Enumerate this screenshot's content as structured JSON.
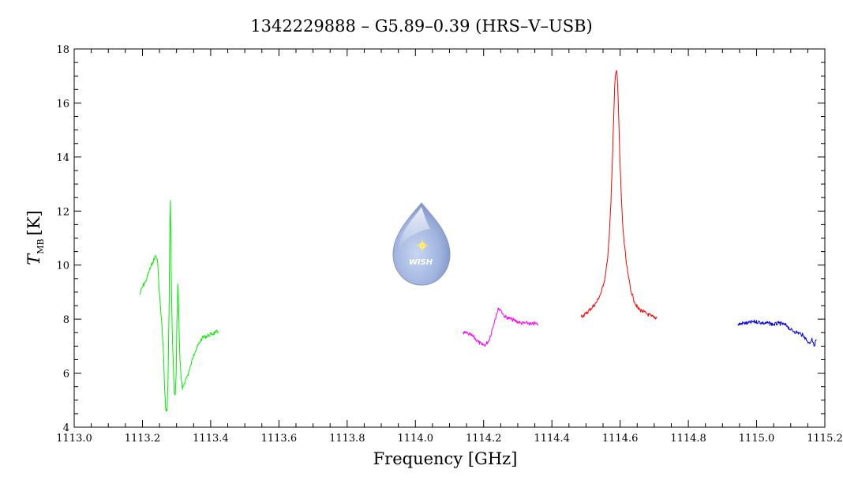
{
  "chart_data": {
    "type": "line",
    "title": "1342229888 – G5.89–0.39 (HRS–V–USB)",
    "xlabel": "Frequency [GHz]",
    "ylabel": "T",
    "ylabel_sub": "MB",
    "ylabel_unit": "[K]",
    "xlim": [
      1113.0,
      1115.2
    ],
    "ylim": [
      4,
      18
    ],
    "x_ticks": [
      "1113.0",
      "1113.2",
      "1113.4",
      "1113.6",
      "1113.8",
      "1114.0",
      "1114.2",
      "1114.4",
      "1114.6",
      "1114.8",
      "1115.0",
      "1115.2"
    ],
    "y_ticks": [
      "4",
      "6",
      "8",
      "10",
      "12",
      "14",
      "16",
      "18"
    ],
    "grid": false,
    "legend": "none",
    "logo_text": "WISH",
    "series": [
      {
        "color": "#00ee00",
        "x": [
          1113.192,
          1113.2,
          1113.21,
          1113.22,
          1113.23,
          1113.238,
          1113.244,
          1113.248,
          1113.253,
          1113.258,
          1113.262,
          1113.265,
          1113.268,
          1113.272,
          1113.275,
          1113.278,
          1113.28,
          1113.282,
          1113.284,
          1113.287,
          1113.29,
          1113.293,
          1113.296,
          1113.299,
          1113.301,
          1113.304,
          1113.306,
          1113.308,
          1113.31,
          1113.313,
          1113.317,
          1113.322,
          1113.328,
          1113.335,
          1113.342,
          1113.35,
          1113.358,
          1113.366,
          1113.375,
          1113.384,
          1113.394,
          1113.404,
          1113.414,
          1113.422
        ],
        "y": [
          8.9,
          9.2,
          9.4,
          9.8,
          10.1,
          10.35,
          10.2,
          9.3,
          8.4,
          7.6,
          6.6,
          5.4,
          4.7,
          4.6,
          5.8,
          8.3,
          11.0,
          12.4,
          10.0,
          7.7,
          6.5,
          5.3,
          5.2,
          6.0,
          7.9,
          9.3,
          8.5,
          7.4,
          6.5,
          5.9,
          5.4,
          5.6,
          5.8,
          6.0,
          6.3,
          6.7,
          6.9,
          7.1,
          7.3,
          7.35,
          7.4,
          7.45,
          7.5,
          7.55
        ]
      },
      {
        "color": "#ff00ff",
        "x": [
          1114.14,
          1114.155,
          1114.17,
          1114.185,
          1114.195,
          1114.205,
          1114.215,
          1114.225,
          1114.232,
          1114.238,
          1114.244,
          1114.25,
          1114.256,
          1114.262,
          1114.27,
          1114.28,
          1114.29,
          1114.3,
          1114.31,
          1114.32,
          1114.33,
          1114.34,
          1114.35,
          1114.36
        ],
        "y": [
          7.5,
          7.45,
          7.35,
          7.15,
          7.05,
          7.05,
          7.2,
          7.6,
          7.95,
          8.2,
          8.4,
          8.35,
          8.2,
          8.1,
          8.05,
          8.0,
          7.95,
          7.9,
          7.85,
          7.85,
          7.85,
          7.8,
          7.85,
          7.8
        ]
      },
      {
        "color": "#ff0000",
        "x": [
          1114.485,
          1114.5,
          1114.515,
          1114.53,
          1114.545,
          1114.555,
          1114.562,
          1114.568,
          1114.573,
          1114.577,
          1114.581,
          1114.584,
          1114.587,
          1114.59,
          1114.593,
          1114.596,
          1114.599,
          1114.603,
          1114.607,
          1114.612,
          1114.618,
          1114.625,
          1114.633,
          1114.642,
          1114.652,
          1114.664,
          1114.678,
          1114.692,
          1114.708
        ],
        "y": [
          8.1,
          8.2,
          8.4,
          8.6,
          9.0,
          9.5,
          10.1,
          11.0,
          12.3,
          13.8,
          15.4,
          16.6,
          17.1,
          17.2,
          16.6,
          15.4,
          14.0,
          12.7,
          11.6,
          10.8,
          10.1,
          9.5,
          9.0,
          8.65,
          8.4,
          8.3,
          8.2,
          8.1,
          8.05
        ]
      },
      {
        "color": "#0000ee",
        "x": [
          1114.945,
          1114.96,
          1114.975,
          1114.99,
          1115.005,
          1115.02,
          1115.035,
          1115.05,
          1115.065,
          1115.08,
          1115.09,
          1115.1,
          1115.11,
          1115.12,
          1115.13,
          1115.14,
          1115.148,
          1115.155,
          1115.162,
          1115.168,
          1115.175
        ],
        "y": [
          7.8,
          7.85,
          7.85,
          7.9,
          7.9,
          7.85,
          7.85,
          7.8,
          7.85,
          7.8,
          7.75,
          7.6,
          7.55,
          7.5,
          7.45,
          7.35,
          7.2,
          7.1,
          7.3,
          7.0,
          7.25
        ]
      }
    ]
  }
}
